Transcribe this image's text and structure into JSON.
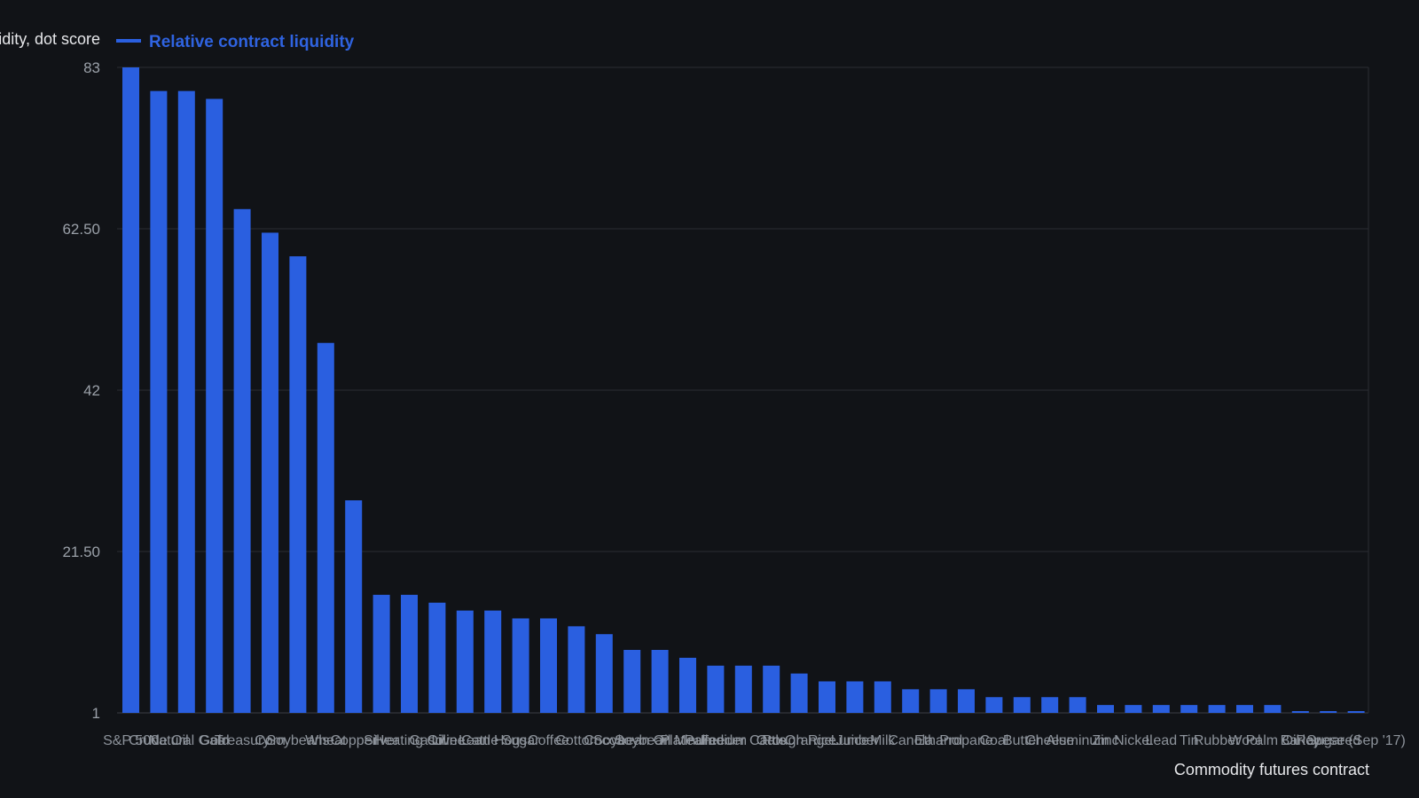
{
  "chart_data": {
    "type": "bar",
    "ylabel": "Liquidity, dot score",
    "xlabel": "Commodity futures contract",
    "legend": {
      "placement": "top-left",
      "entries": [
        "Relative contract liquidity"
      ]
    },
    "grid": true,
    "ylim": [
      1,
      83
    ],
    "yticks": [
      "83",
      "62.50",
      "42",
      "21.50",
      "1"
    ],
    "series": [
      {
        "name": "Relative contract liquidity",
        "color": "#2a5fe0",
        "values": [
          83,
          80,
          80,
          79,
          65,
          62,
          59,
          48,
          28,
          16,
          16,
          15,
          14,
          14,
          13,
          13,
          12,
          11,
          9,
          9,
          8,
          7,
          7,
          7,
          6,
          5,
          5,
          5,
          4,
          4,
          4,
          3,
          3,
          3,
          3,
          2,
          2,
          2,
          2,
          2,
          2,
          2,
          1,
          1,
          1
        ]
      }
    ],
    "categories": [
      "S&P 500",
      "Crude Oil",
      "Natural Gas",
      "Gold",
      "Treasury",
      "Corn",
      "Soybeans",
      "Wheat",
      "Copper",
      "Silver",
      "Heating Oil",
      "Gasoline",
      "Live Cattle",
      "Lean Hogs",
      "Sugar",
      "Coffee",
      "Cotton",
      "Cocoa",
      "Soybean Oil",
      "Soybean Meal",
      "Platinum",
      "Palladium",
      "Feeder Cattle",
      "Oats",
      "Rough Rice",
      "Orange Juice",
      "Lumber",
      "Milk",
      "Canola",
      "Ethanol",
      "Propane",
      "Coal",
      "Butter",
      "Cheese",
      "Aluminum",
      "Zinc",
      "Nickel",
      "Lead",
      "Tin",
      "Rubber",
      "Wool",
      "Palm Oil",
      "Barley",
      "Rapeseed",
      "Sugar (Sep '17)"
    ]
  }
}
